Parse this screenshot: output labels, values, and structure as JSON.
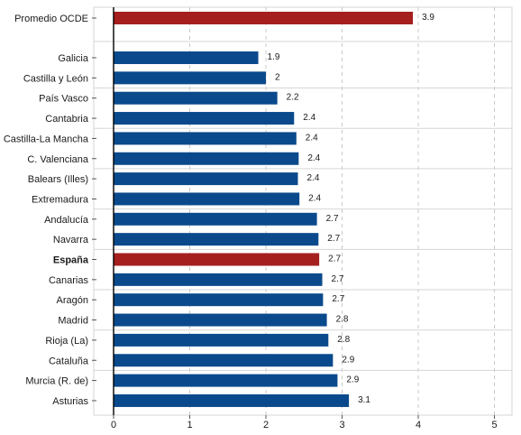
{
  "chart_data": {
    "type": "bar",
    "orientation": "horizontal",
    "categories": [
      "Promedio OCDE",
      "Galicia",
      "Castilla y León",
      "País Vasco",
      "Cantabria",
      "Castilla-La Mancha",
      "C. Valenciana",
      "Balears (Illes)",
      "Extremadura",
      "Andalucía",
      "Navarra",
      "España",
      "Canarias",
      "Aragón",
      "Madrid",
      "Rioja (La)",
      "Cataluña",
      "Murcia (R. de)",
      "Asturias"
    ],
    "values": [
      3.93,
      1.9,
      2.0,
      2.15,
      2.37,
      2.4,
      2.43,
      2.42,
      2.44,
      2.67,
      2.69,
      2.7,
      2.74,
      2.75,
      2.8,
      2.82,
      2.88,
      2.94,
      3.09
    ],
    "value_labels": [
      "3.9",
      "1.9",
      "2",
      "2.2",
      "2.4",
      "2.4",
      "2.4",
      "2.4",
      "2.4",
      "2.7",
      "2.7",
      "2.7",
      "2.7",
      "2.7",
      "2.8",
      "2.8",
      "2.9",
      "2.9",
      "3.1"
    ],
    "highlighted": [
      "Promedio OCDE",
      "España"
    ],
    "bold_categories": [
      "España"
    ],
    "xlim": [
      0,
      5.2
    ],
    "xticks": [
      0,
      1,
      2,
      3,
      4,
      5
    ],
    "xtick_labels": [
      "0",
      "1",
      "2",
      "3",
      "4",
      "5"
    ],
    "grid": true,
    "colors": {
      "bar": "#0a4a8c",
      "highlight": "#a51f1f",
      "grid": "#c8c8c8",
      "row_separator": "#d6d6d6",
      "axis": "#000000"
    },
    "title": "",
    "xlabel": "",
    "ylabel": ""
  }
}
